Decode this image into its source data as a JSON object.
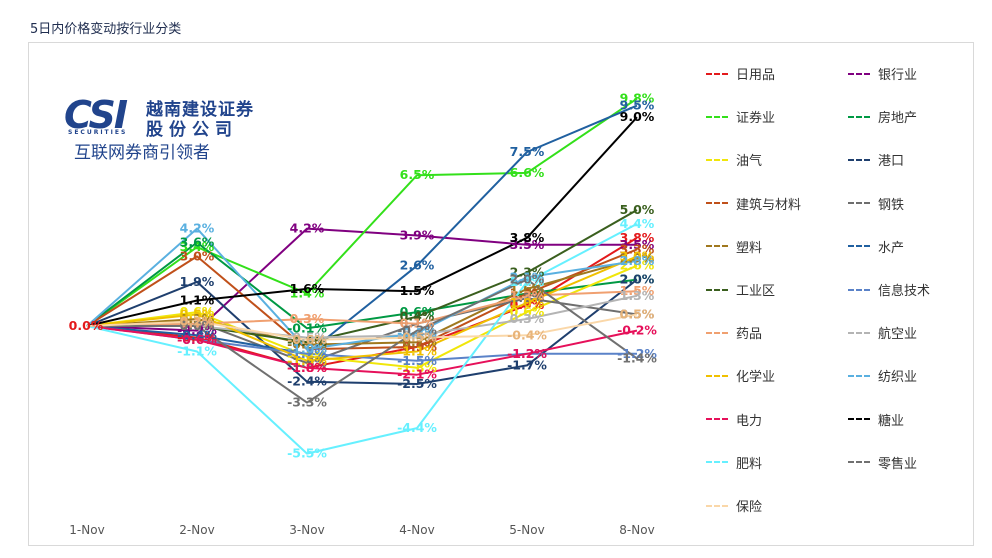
{
  "title": "5日内价格变动按行业分类",
  "logo": {
    "mark": "CSI",
    "sub": "SECURITIES",
    "name_line1": "越南建设证券",
    "name_line2": "股份公司",
    "slogan": "互联网券商引领者"
  },
  "chart_data": {
    "type": "line",
    "x": [
      "1-Nov",
      "2-Nov",
      "3-Nov",
      "4-Nov",
      "5-Nov",
      "8-Nov"
    ],
    "ylim": [
      -7,
      11
    ],
    "unit": "%",
    "grid": false,
    "legend_position": "right",
    "series": [
      {
        "name": "日用品",
        "color": "#e31a1c",
        "values": [
          0.0,
          -0.5,
          -1.8,
          -0.9,
          0.9,
          3.8
        ]
      },
      {
        "name": "银行业",
        "color": "#800080",
        "values": [
          0.0,
          -0.2,
          4.2,
          3.9,
          3.5,
          3.5
        ]
      },
      {
        "name": "证券业",
        "color": "#33e01a",
        "values": [
          0.0,
          3.4,
          1.4,
          6.5,
          6.6,
          9.8
        ]
      },
      {
        "name": "房地产",
        "color": "#009944",
        "values": [
          0.0,
          3.6,
          -0.1,
          0.6,
          1.4,
          2.0
        ]
      },
      {
        "name": "油气",
        "color": "#f0e60a",
        "values": [
          0.0,
          0.6,
          -1.3,
          -1.8,
          0.6,
          2.6
        ]
      },
      {
        "name": "港口",
        "color": "#1f3f6e",
        "values": [
          0.0,
          1.9,
          -2.4,
          -2.5,
          -1.7,
          2.0
        ]
      },
      {
        "name": "建筑与材料",
        "color": "#c0501a",
        "values": [
          0.0,
          3.0,
          -1.0,
          -0.9,
          1.4,
          3.3
        ]
      },
      {
        "name": "钢铁",
        "color": "#6e6e6e",
        "values": [
          0.0,
          0.2,
          -1.6,
          0.1,
          1.2,
          0.5
        ]
      },
      {
        "name": "塑料",
        "color": "#a0781e",
        "values": [
          0.0,
          0.3,
          -0.8,
          -0.7,
          1.6,
          2.9
        ]
      },
      {
        "name": "水产",
        "color": "#2060a0",
        "values": [
          0.0,
          -0.4,
          -1.2,
          2.6,
          7.5,
          9.5
        ]
      },
      {
        "name": "工业区",
        "color": "#3a5f1e",
        "values": [
          0.0,
          0.0,
          -0.7,
          0.4,
          2.3,
          5.0
        ]
      },
      {
        "name": "信息技术",
        "color": "#5a82c8",
        "values": [
          0.0,
          -0.6,
          -1.2,
          -1.5,
          -1.2,
          -1.2
        ]
      },
      {
        "name": "药品",
        "color": "#f0a070",
        "values": [
          0.0,
          0.1,
          0.3,
          0.1,
          1.3,
          1.5
        ]
      },
      {
        "name": "航空业",
        "color": "#b4b4b4",
        "values": [
          0.0,
          0.0,
          -0.5,
          -0.4,
          0.3,
          1.3
        ]
      },
      {
        "name": "化学业",
        "color": "#f0c000",
        "values": [
          0.0,
          0.5,
          -1.5,
          -1.1,
          1.0,
          3.0
        ]
      },
      {
        "name": "纺织业",
        "color": "#5ab0e0",
        "values": [
          0.0,
          4.2,
          -1.0,
          -0.3,
          2.1,
          2.8
        ]
      },
      {
        "name": "电力",
        "color": "#e6105a",
        "values": [
          0.0,
          -0.6,
          -1.8,
          -2.1,
          -1.2,
          -0.2
        ]
      },
      {
        "name": "糖业",
        "color": "#000000",
        "values": [
          0.0,
          1.1,
          1.6,
          1.5,
          3.8,
          9.0
        ]
      },
      {
        "name": "肥料",
        "color": "#66f0ff",
        "values": [
          0.0,
          -1.1,
          -5.5,
          -4.4,
          1.9,
          4.4
        ]
      },
      {
        "name": "零售业",
        "color": "#707070",
        "values": [
          0.0,
          0.0,
          -3.3,
          -0.2,
          2.0,
          -1.4
        ]
      },
      {
        "name": "保险",
        "color": "#fad7a8",
        "values": [
          0.0,
          0.2,
          -0.6,
          -0.5,
          -0.4,
          0.5
        ]
      }
    ]
  }
}
